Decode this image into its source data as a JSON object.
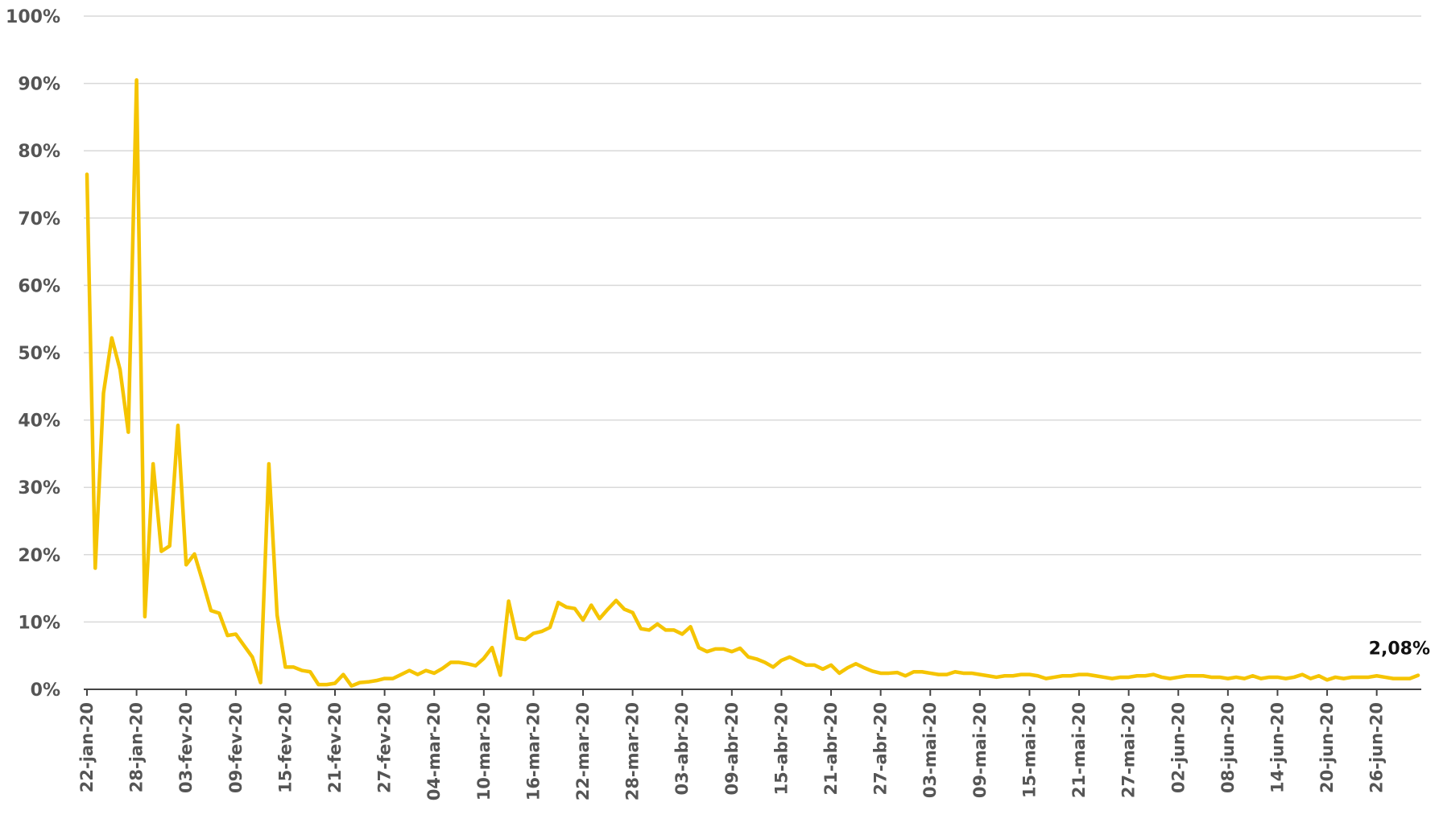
{
  "chart_data": {
    "type": "line",
    "title": "",
    "xlabel": "",
    "ylabel": "",
    "ylim": [
      0,
      100
    ],
    "grid": true,
    "line_color": "#F5C400",
    "y_ticks": [
      "0%",
      "10%",
      "20%",
      "30%",
      "40%",
      "50%",
      "60%",
      "70%",
      "80%",
      "90%",
      "100%"
    ],
    "x_ticks": [
      "22-jan-20",
      "28-jan-20",
      "03-fev-20",
      "09-fev-20",
      "15-fev-20",
      "21-fev-20",
      "27-fev-20",
      "04-mar-20",
      "10-mar-20",
      "16-mar-20",
      "22-mar-20",
      "28-mar-20",
      "03-abr-20",
      "09-abr-20",
      "15-abr-20",
      "21-abr-20",
      "27-abr-20",
      "03-mai-20",
      "09-mai-20",
      "15-mai-20",
      "21-mai-20",
      "27-mai-20",
      "02-jun-20",
      "08-jun-20",
      "14-jun-20",
      "20-jun-20",
      "26-jun-20"
    ],
    "x_start": "22-jan-20",
    "x_end": "30-jun-20",
    "series": [
      {
        "values": [
          76.5,
          18,
          44,
          52.2,
          47.5,
          38.2,
          90.5,
          10.8,
          33.5,
          20.5,
          21.3,
          39.2,
          18.5,
          20.1,
          16,
          11.7,
          11.3,
          8,
          8.2,
          6.5,
          4.8,
          1,
          33.5,
          11,
          3.3,
          3.3,
          2.8,
          2.6,
          0.7,
          0.7,
          0.9,
          2.2,
          0.5,
          1,
          1.1,
          1.3,
          1.6,
          1.6,
          2.2,
          2.8,
          2.2,
          2.8,
          2.4,
          3.1,
          4,
          4,
          3.8,
          3.5,
          4.6,
          6.2,
          2.1,
          13.1,
          7.6,
          7.4,
          8.3,
          8.6,
          9.2,
          12.9,
          12.2,
          12,
          10.3,
          12.5,
          10.5,
          11.9,
          13.2,
          11.9,
          11.4,
          9,
          8.8,
          9.7,
          8.8,
          8.8,
          8.2,
          9.3,
          6.2,
          5.6,
          6,
          6,
          5.6,
          6.1,
          4.8,
          4.5,
          4,
          3.3,
          4.3,
          4.8,
          4.2,
          3.6,
          3.6,
          3,
          3.6,
          2.4,
          3.2,
          3.8,
          3.2,
          2.7,
          2.4,
          2.4,
          2.5,
          2,
          2.6,
          2.6,
          2.4,
          2.2,
          2.2,
          2.6,
          2.4,
          2.4,
          2.2,
          2,
          1.8,
          2,
          2,
          2.2,
          2.2,
          2,
          1.6,
          1.8,
          2,
          2,
          2.2,
          2.2,
          2,
          1.8,
          1.6,
          1.8,
          1.8,
          2,
          2,
          2.2,
          1.8,
          1.6,
          1.8,
          2,
          2,
          2,
          1.8,
          1.8,
          1.6,
          1.8,
          1.6,
          2,
          1.6,
          1.8,
          1.8,
          1.6,
          1.8,
          2.2,
          1.6,
          2,
          1.4,
          1.8,
          1.6,
          1.8,
          1.8,
          1.8,
          2,
          1.8,
          1.6,
          1.6,
          1.6,
          2.08
        ]
      }
    ],
    "annotation": "2,08%"
  }
}
